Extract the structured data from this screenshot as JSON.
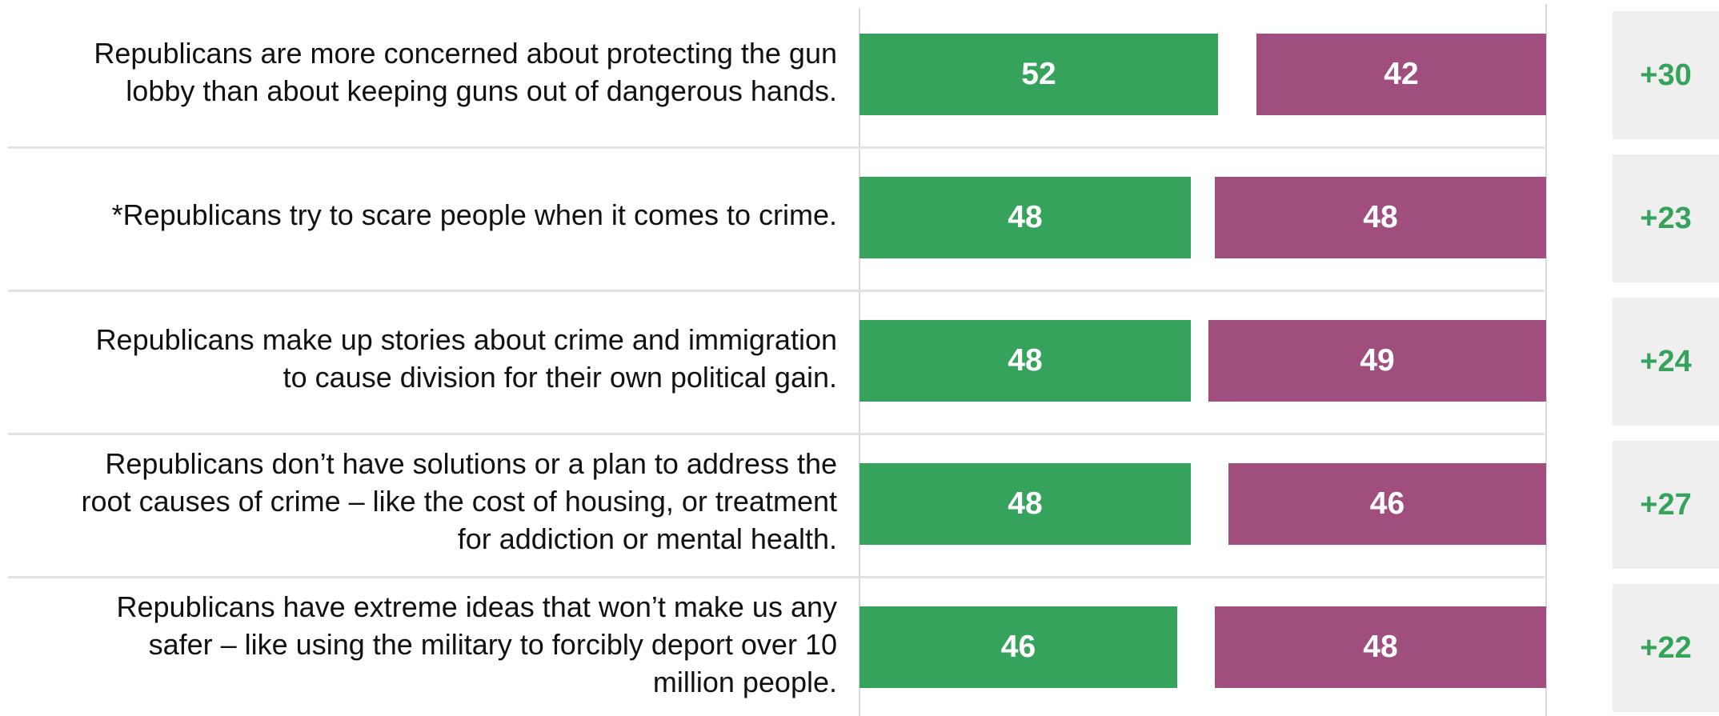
{
  "colors": {
    "series_a": "#36a35d",
    "series_b": "#a04e7d",
    "net_text": "#36a35d",
    "net_background": "#efefef"
  },
  "chart_data": {
    "type": "bar",
    "orientation": "horizontal",
    "stacked": false,
    "title": "",
    "xlabel": "",
    "ylabel": "",
    "categories": [
      [
        "Republicans are more concerned about protecting the gun",
        "lobby than about keeping guns out of dangerous hands."
      ],
      [
        "*Republicans try to scare people when it comes to crime."
      ],
      [
        "Republicans make up stories about crime and immigration",
        "to cause division for their own political gain."
      ],
      [
        "Republicans don’t have solutions or a plan to address the",
        "root causes of crime – like the cost of housing, or treatment",
        "for addiction or mental health."
      ],
      [
        "Republicans have extreme ideas that won’t make us any",
        "safer – like using the military to forcibly deport over 10",
        "million people."
      ]
    ],
    "series": [
      {
        "name": "",
        "values": [
          52,
          48,
          48,
          48,
          46
        ]
      },
      {
        "name": "",
        "values": [
          42,
          48,
          49,
          46,
          48
        ]
      }
    ],
    "net": [
      "+30",
      "+23",
      "+24",
      "+27",
      "+22"
    ],
    "grid": false,
    "legend": "none"
  }
}
